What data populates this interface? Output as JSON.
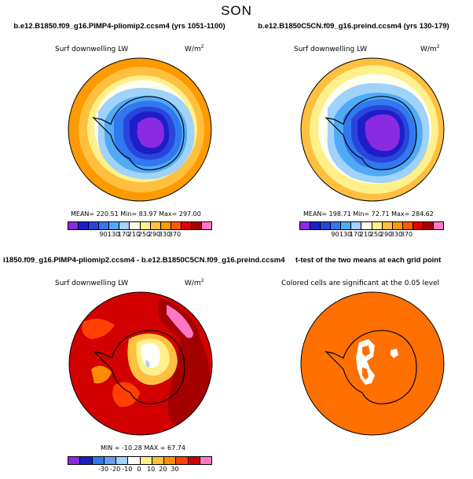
{
  "season": "SON",
  "panels": {
    "p1": {
      "title": "b.e12.B1850.f09_g16.PIMP4-pliomip2.ccsm4 (yrs 1051-1100)",
      "variable": "Surf downwelling LW",
      "units_base": "W/m",
      "units_exp": "2",
      "stats": "MEAN= 220.51  Min=  83.97  Max= 297.00",
      "colorbar": {
        "colors": [
          "#8a2be2",
          "#1e1ec8",
          "#2846dc",
          "#3278f0",
          "#50aaf5",
          "#a0d2fa",
          "#fffff0",
          "#fff08c",
          "#ffc040",
          "#ff9a00",
          "#ff5a00",
          "#e10000",
          "#a50000",
          "#ff78c8"
        ],
        "ticks": [
          "90",
          "130",
          "170",
          "210",
          "250",
          "290",
          "330",
          "370"
        ]
      }
    },
    "p2": {
      "title": "b.e12.B1850C5CN.f09_g16.preind.ccsm4 (yrs 130-179)",
      "variable": "Surf downwelling LW",
      "units_base": "W/m",
      "units_exp": "2",
      "stats": "MEAN= 198.71  Min=  72.71  Max= 284.62",
      "colorbar": {
        "colors": [
          "#8a2be2",
          "#1e1ec8",
          "#2846dc",
          "#3278f0",
          "#50aaf5",
          "#a0d2fa",
          "#fffff0",
          "#fff08c",
          "#ffc040",
          "#ff9a00",
          "#ff5a00",
          "#e10000",
          "#a50000",
          "#ff78c8"
        ],
        "ticks": [
          "90",
          "130",
          "170",
          "210",
          "250",
          "290",
          "330",
          "370"
        ]
      }
    },
    "p3": {
      "title": "i1850.f09_g16.PIMP4-pliomip2.ccsm4 - b.e12.B1850C5CN.f09_g16.preind.ccsm4",
      "variable": "Surf downwelling LW",
      "units_base": "W/m",
      "units_exp": "2",
      "stats": "MIN = -10.28  MAX =  67.74",
      "colorbar": {
        "colors": [
          "#8a2be2",
          "#1e1ec8",
          "#3278f0",
          "#64a0f0",
          "#a0d2fa",
          "#ffffff",
          "#fff08c",
          "#ffc040",
          "#ff8c00",
          "#ff4000",
          "#d20000",
          "#ff78c8"
        ],
        "ticks": [
          "-30",
          "-20",
          "-10",
          "0",
          "10",
          "20",
          "30"
        ]
      }
    },
    "p4": {
      "title": "t-test of the two means at each grid point",
      "subtitle": "Colored cells are significant at the 0.05 level"
    }
  }
}
